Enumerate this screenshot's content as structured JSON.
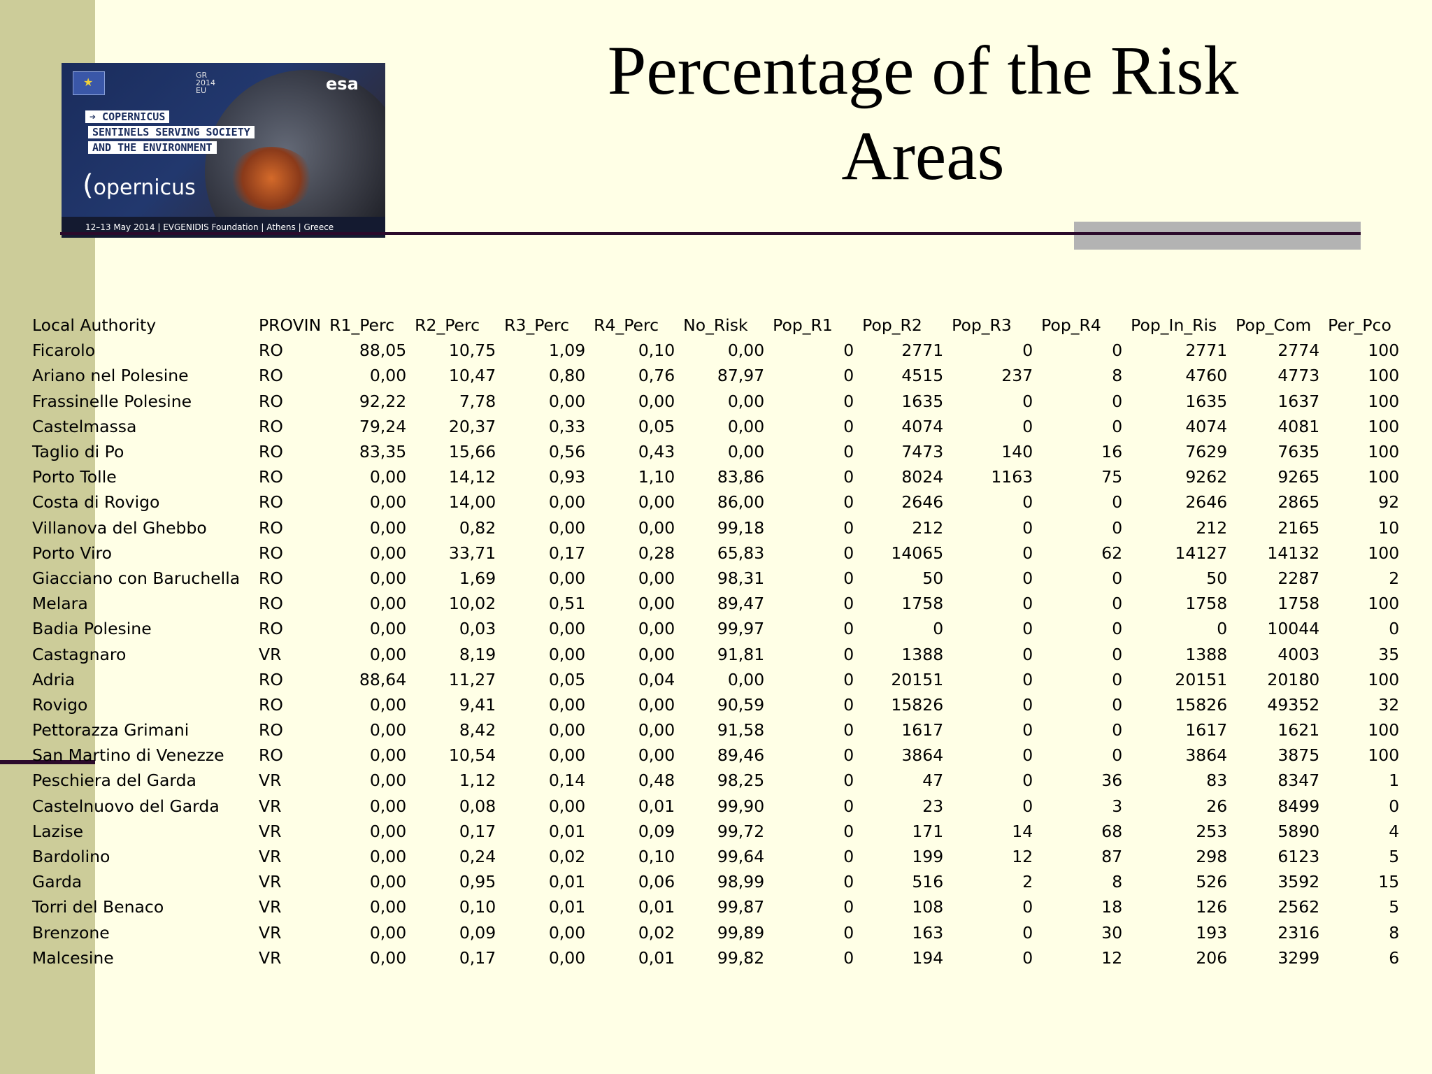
{
  "slide": {
    "title": "Percentage of the Risk Areas",
    "colors": {
      "background": "#ffffe6",
      "sidebar": "#cccc99",
      "rule": "#2b0a2b",
      "accent_block": "#b3b3b3"
    }
  },
  "banner": {
    "tags": [
      "➔ COPERNICUS",
      "SENTINELS SERVING SOCIETY",
      "AND THE ENVIRONMENT"
    ],
    "brand": "opernicus",
    "esa": "esa",
    "gr_logo": "GR 2014 EU",
    "footer": "12–13 May 2014 | EVGENIDIS Foundation | Athens | Greece"
  },
  "table": {
    "columns": [
      "Local Authority",
      "PROVIN",
      "R1_Perc",
      "R2_Perc",
      "R3_Perc",
      "R4_Perc",
      "No_Risk",
      "Pop_R1",
      "Pop_R2",
      "Pop_R3",
      "Pop_R4",
      "Pop_In_Ris",
      "Pop_Com",
      "Per_Pco"
    ],
    "rows": [
      [
        "Ficarolo",
        "RO",
        "88,05",
        "10,75",
        "1,09",
        "0,10",
        "0,00",
        "0",
        "2771",
        "0",
        "0",
        "2771",
        "2774",
        "100"
      ],
      [
        "Ariano nel Polesine",
        "RO",
        "0,00",
        "10,47",
        "0,80",
        "0,76",
        "87,97",
        "0",
        "4515",
        "237",
        "8",
        "4760",
        "4773",
        "100"
      ],
      [
        "Frassinelle Polesine",
        "RO",
        "92,22",
        "7,78",
        "0,00",
        "0,00",
        "0,00",
        "0",
        "1635",
        "0",
        "0",
        "1635",
        "1637",
        "100"
      ],
      [
        "Castelmassa",
        "RO",
        "79,24",
        "20,37",
        "0,33",
        "0,05",
        "0,00",
        "0",
        "4074",
        "0",
        "0",
        "4074",
        "4081",
        "100"
      ],
      [
        "Taglio di Po",
        "RO",
        "83,35",
        "15,66",
        "0,56",
        "0,43",
        "0,00",
        "0",
        "7473",
        "140",
        "16",
        "7629",
        "7635",
        "100"
      ],
      [
        "Porto Tolle",
        "RO",
        "0,00",
        "14,12",
        "0,93",
        "1,10",
        "83,86",
        "0",
        "8024",
        "1163",
        "75",
        "9262",
        "9265",
        "100"
      ],
      [
        "Costa di Rovigo",
        "RO",
        "0,00",
        "14,00",
        "0,00",
        "0,00",
        "86,00",
        "0",
        "2646",
        "0",
        "0",
        "2646",
        "2865",
        "92"
      ],
      [
        "Villanova del Ghebbo",
        "RO",
        "0,00",
        "0,82",
        "0,00",
        "0,00",
        "99,18",
        "0",
        "212",
        "0",
        "0",
        "212",
        "2165",
        "10"
      ],
      [
        "Porto Viro",
        "RO",
        "0,00",
        "33,71",
        "0,17",
        "0,28",
        "65,83",
        "0",
        "14065",
        "0",
        "62",
        "14127",
        "14132",
        "100"
      ],
      [
        "Giacciano con Baruchella",
        "RO",
        "0,00",
        "1,69",
        "0,00",
        "0,00",
        "98,31",
        "0",
        "50",
        "0",
        "0",
        "50",
        "2287",
        "2"
      ],
      [
        "Melara",
        "RO",
        "0,00",
        "10,02",
        "0,51",
        "0,00",
        "89,47",
        "0",
        "1758",
        "0",
        "0",
        "1758",
        "1758",
        "100"
      ],
      [
        "Badia Polesine",
        "RO",
        "0,00",
        "0,03",
        "0,00",
        "0,00",
        "99,97",
        "0",
        "0",
        "0",
        "0",
        "0",
        "10044",
        "0"
      ],
      [
        "Castagnaro",
        "VR",
        "0,00",
        "8,19",
        "0,00",
        "0,00",
        "91,81",
        "0",
        "1388",
        "0",
        "0",
        "1388",
        "4003",
        "35"
      ],
      [
        "Adria",
        "RO",
        "88,64",
        "11,27",
        "0,05",
        "0,04",
        "0,00",
        "0",
        "20151",
        "0",
        "0",
        "20151",
        "20180",
        "100"
      ],
      [
        "Rovigo",
        "RO",
        "0,00",
        "9,41",
        "0,00",
        "0,00",
        "90,59",
        "0",
        "15826",
        "0",
        "0",
        "15826",
        "49352",
        "32"
      ],
      [
        "Pettorazza Grimani",
        "RO",
        "0,00",
        "8,42",
        "0,00",
        "0,00",
        "91,58",
        "0",
        "1617",
        "0",
        "0",
        "1617",
        "1621",
        "100"
      ],
      [
        "San Martino di Venezze",
        "RO",
        "0,00",
        "10,54",
        "0,00",
        "0,00",
        "89,46",
        "0",
        "3864",
        "0",
        "0",
        "3864",
        "3875",
        "100"
      ],
      [
        "Peschiera del Garda",
        "VR",
        "0,00",
        "1,12",
        "0,14",
        "0,48",
        "98,25",
        "0",
        "47",
        "0",
        "36",
        "83",
        "8347",
        "1"
      ],
      [
        "Castelnuovo del Garda",
        "VR",
        "0,00",
        "0,08",
        "0,00",
        "0,01",
        "99,90",
        "0",
        "23",
        "0",
        "3",
        "26",
        "8499",
        "0"
      ],
      [
        "Lazise",
        "VR",
        "0,00",
        "0,17",
        "0,01",
        "0,09",
        "99,72",
        "0",
        "171",
        "14",
        "68",
        "253",
        "5890",
        "4"
      ],
      [
        "Bardolino",
        "VR",
        "0,00",
        "0,24",
        "0,02",
        "0,10",
        "99,64",
        "0",
        "199",
        "12",
        "87",
        "298",
        "6123",
        "5"
      ],
      [
        "Garda",
        "VR",
        "0,00",
        "0,95",
        "0,01",
        "0,06",
        "98,99",
        "0",
        "516",
        "2",
        "8",
        "526",
        "3592",
        "15"
      ],
      [
        "Torri del Benaco",
        "VR",
        "0,00",
        "0,10",
        "0,01",
        "0,01",
        "99,87",
        "0",
        "108",
        "0",
        "18",
        "126",
        "2562",
        "5"
      ],
      [
        "Brenzone",
        "VR",
        "0,00",
        "0,09",
        "0,00",
        "0,02",
        "99,89",
        "0",
        "163",
        "0",
        "30",
        "193",
        "2316",
        "8"
      ],
      [
        "Malcesine",
        "VR",
        "0,00",
        "0,17",
        "0,00",
        "0,01",
        "99,82",
        "0",
        "194",
        "0",
        "12",
        "206",
        "3299",
        "6"
      ]
    ]
  }
}
